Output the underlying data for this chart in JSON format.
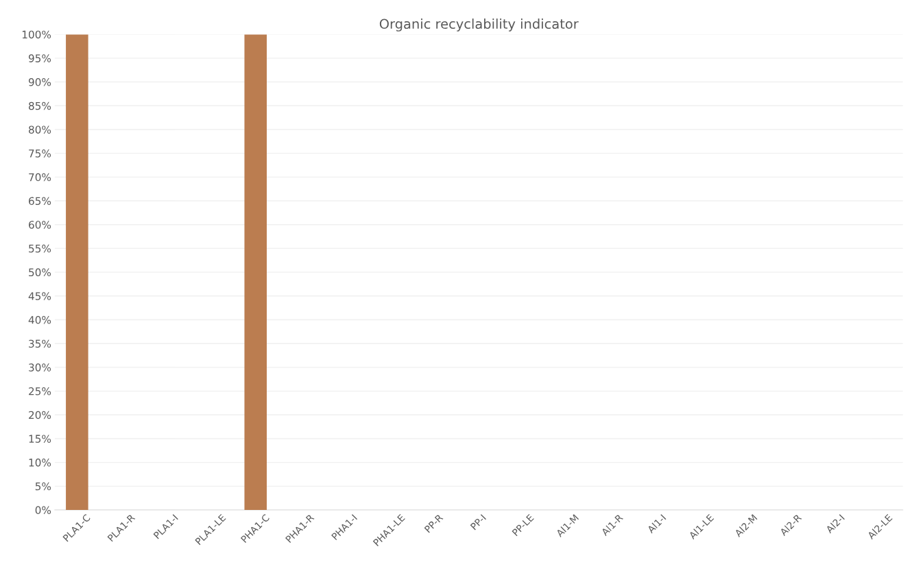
{
  "chart_data": {
    "type": "bar",
    "title": "Organic recyclability indicator",
    "categories": [
      "PLA1-C",
      "PLA1-R",
      "PLA1-I",
      "PLA1-LE",
      "PHA1-C",
      "PHA1-R",
      "PHA1-I",
      "PHA1-LE",
      "PP-R",
      "PP-I",
      "PP-LE",
      "Al1-M",
      "Al1-R",
      "Al1-I",
      "Al1-LE",
      "Al2-M",
      "Al2-R",
      "Al2-I",
      "Al2-LE"
    ],
    "values": [
      100,
      0,
      0,
      0,
      100,
      0,
      0,
      0,
      0,
      0,
      0,
      0,
      0,
      0,
      0,
      0,
      0,
      0,
      0
    ],
    "color": "#bb7d50",
    "ylim": [
      0,
      100
    ],
    "yticks": [
      {
        "value": 0,
        "label": "0%"
      },
      {
        "value": 5,
        "label": "5%"
      },
      {
        "value": 10,
        "label": "10%"
      },
      {
        "value": 15,
        "label": "15%"
      },
      {
        "value": 20,
        "label": "20%"
      },
      {
        "value": 25,
        "label": "25%"
      },
      {
        "value": 30,
        "label": "30%"
      },
      {
        "value": 35,
        "label": "35%"
      },
      {
        "value": 40,
        "label": "40%"
      },
      {
        "value": 45,
        "label": "45%"
      },
      {
        "value": 50,
        "label": "50%"
      },
      {
        "value": 55,
        "label": "55%"
      },
      {
        "value": 60,
        "label": "60%"
      },
      {
        "value": 65,
        "label": "65%"
      },
      {
        "value": 70,
        "label": "70%"
      },
      {
        "value": 75,
        "label": "75%"
      },
      {
        "value": 80,
        "label": "80%"
      },
      {
        "value": 85,
        "label": "85%"
      },
      {
        "value": 90,
        "label": "90%"
      },
      {
        "value": 95,
        "label": "95%"
      },
      {
        "value": 100,
        "label": "100%"
      }
    ],
    "grid": "y"
  }
}
